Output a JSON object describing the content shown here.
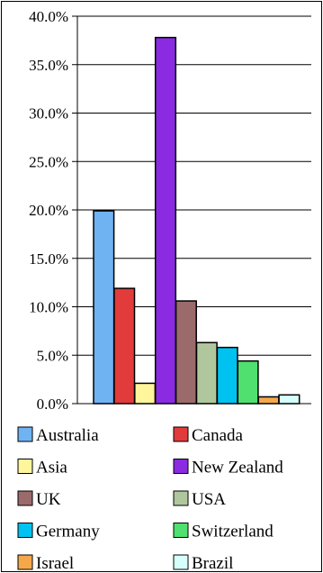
{
  "chart_data": {
    "type": "bar",
    "categories": [
      "Australia",
      "Canada",
      "Asia",
      "New Zealand",
      "UK",
      "USA",
      "Germany",
      "Switzerland",
      "Israel",
      "Brazil"
    ],
    "values": [
      19.9,
      11.9,
      2.1,
      37.8,
      10.6,
      6.3,
      5.8,
      4.4,
      0.7,
      0.9
    ],
    "colors": [
      "#6fb3f3",
      "#e23b3b",
      "#fff59a",
      "#8a2be2",
      "#9b6b6b",
      "#b0c79e",
      "#00c2f0",
      "#4fe06f",
      "#f5a84a",
      "#d6fffb"
    ],
    "ylim": [
      0,
      40
    ],
    "yticks": [
      "0.0%",
      "5.0%",
      "10.0%",
      "15.0%",
      "20.0%",
      "25.0%",
      "30.0%",
      "35.0%",
      "40.0%"
    ],
    "grid": true,
    "legend_placement": "bottom",
    "title": "",
    "xlabel": "",
    "ylabel": ""
  }
}
